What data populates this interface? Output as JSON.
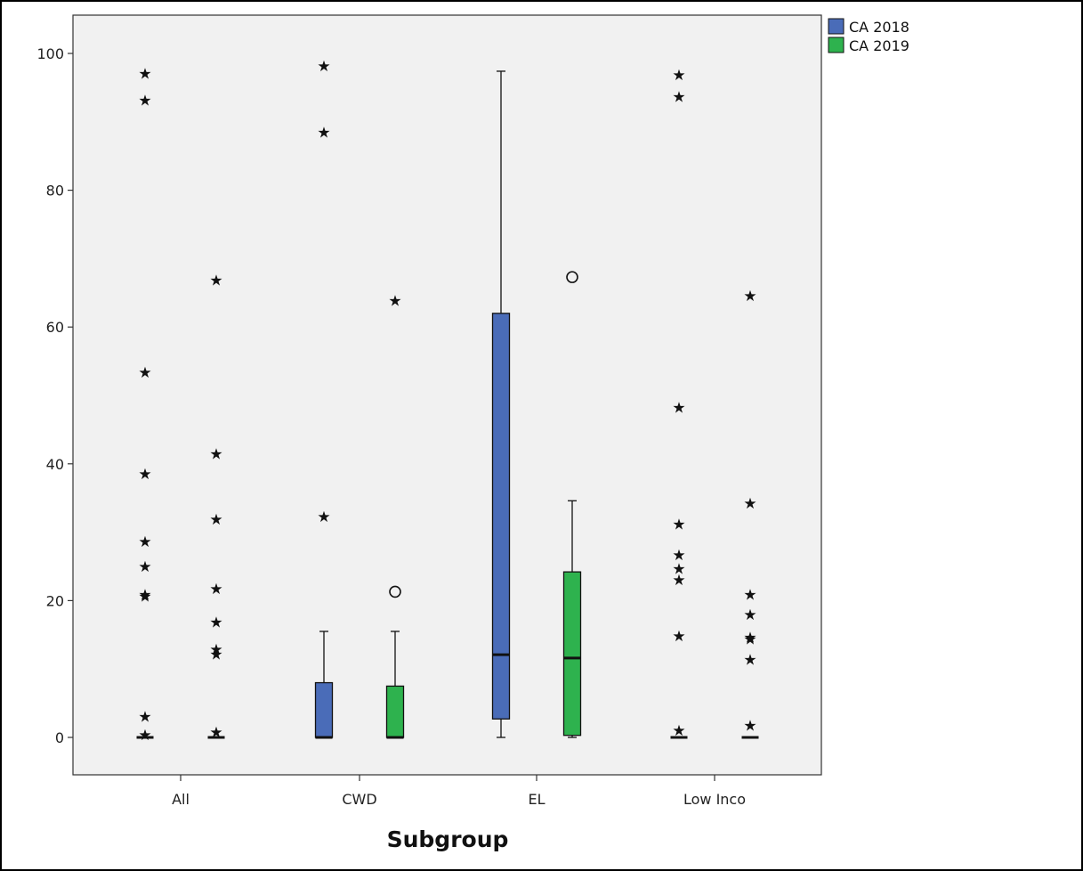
{
  "chart_data": {
    "type": "boxplot",
    "xlabel": "Subgroup",
    "ylabel": "",
    "ylim": [
      -5,
      106
    ],
    "yticks": [
      0,
      20,
      40,
      60,
      80,
      100
    ],
    "categories": [
      "All",
      "CWD",
      "EL",
      "Low Inco"
    ],
    "legend_position": "top-right-outside",
    "grid": false,
    "series": [
      {
        "name": "CA 2018",
        "color": "#4a6cb8",
        "boxes": [
          {
            "category": "All",
            "q1": 0,
            "median": 0,
            "q3": 0,
            "whisker_low": 0,
            "whisker_high": 0,
            "outliers": [],
            "extremes": [
              97.2,
              93.3,
              53.5,
              38.7,
              28.8,
              25.1,
              21.0,
              20.8,
              3.2,
              0.5
            ]
          },
          {
            "category": "CWD",
            "q1": 0,
            "median": 0,
            "q3": 8.0,
            "whisker_low": 0,
            "whisker_high": 15.5,
            "outliers": [],
            "extremes": [
              98.3,
              88.6,
              32.4
            ]
          },
          {
            "category": "EL",
            "q1": 2.7,
            "median": 12.1,
            "q3": 62.0,
            "whisker_low": 0,
            "whisker_high": 97.4,
            "outliers": [],
            "extremes": []
          },
          {
            "category": "Low Inco",
            "q1": 0,
            "median": 0,
            "q3": 0,
            "whisker_low": 0,
            "whisker_high": 0,
            "outliers": [],
            "extremes": [
              97.0,
              93.8,
              48.4,
              31.3,
              26.8,
              24.8,
              23.2,
              15.0,
              1.2
            ]
          }
        ]
      },
      {
        "name": "CA 2019",
        "color": "#2eb24e",
        "boxes": [
          {
            "category": "All",
            "q1": 0,
            "median": 0,
            "q3": 0,
            "whisker_low": 0,
            "whisker_high": 0,
            "outliers": [],
            "extremes": [
              67.0,
              41.6,
              32.0,
              21.9,
              17.0,
              13.0,
              12.3,
              0.9
            ]
          },
          {
            "category": "CWD",
            "q1": 0,
            "median": 0,
            "q3": 7.5,
            "whisker_low": 0,
            "whisker_high": 15.5,
            "outliers": [
              21.3
            ],
            "extremes": [
              64.0
            ]
          },
          {
            "category": "EL",
            "q1": 0.3,
            "median": 11.6,
            "q3": 24.2,
            "whisker_low": 0,
            "whisker_high": 34.6,
            "outliers": [
              67.3
            ],
            "extremes": []
          },
          {
            "category": "Low Inco",
            "q1": 0,
            "median": 0,
            "q3": 0,
            "whisker_low": 0,
            "whisker_high": 0,
            "outliers": [],
            "extremes": [
              64.7,
              34.4,
              21.0,
              18.1,
              14.8,
              14.5,
              11.5,
              1.9
            ]
          }
        ]
      }
    ]
  }
}
